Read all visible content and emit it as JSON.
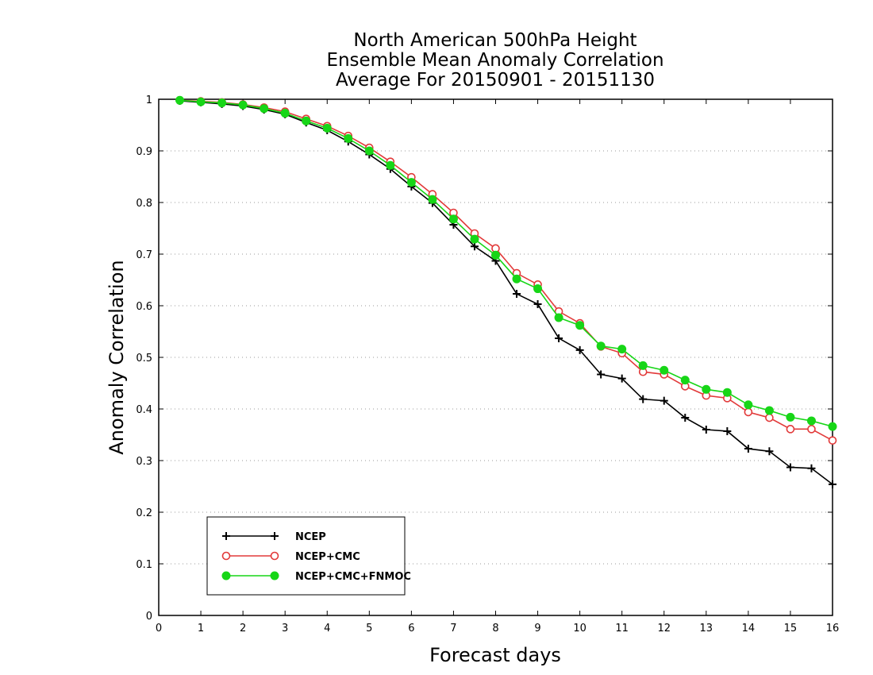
{
  "chart_data": {
    "type": "line",
    "title_lines": [
      "North American 500hPa Height",
      "Ensemble Mean Anomaly Correlation",
      "Average For 20150901 - 20151130"
    ],
    "xlabel": "Forecast days",
    "ylabel": "Anomaly Correlation",
    "xlim": [
      0,
      16
    ],
    "ylim": [
      0,
      1
    ],
    "x_ticks": [
      "0",
      "1",
      "2",
      "3",
      "4",
      "5",
      "6",
      "7",
      "8",
      "9",
      "10",
      "11",
      "12",
      "13",
      "14",
      "15",
      "16"
    ],
    "y_ticks": [
      "0",
      "0.1",
      "0.2",
      "0.3",
      "0.4",
      "0.5",
      "0.6",
      "0.7",
      "0.8",
      "0.9",
      "1"
    ],
    "grid": "horizontal dotted",
    "legend_position": "bottom-left",
    "x": [
      0.5,
      1,
      1.5,
      2,
      2.5,
      3,
      3.5,
      4,
      4.5,
      5,
      5.5,
      6,
      6.5,
      7,
      7.5,
      8,
      8.5,
      9,
      9.5,
      10,
      10.5,
      11,
      11.5,
      12,
      12.5,
      13,
      13.5,
      14,
      14.5,
      15,
      15.5,
      16
    ],
    "series": [
      {
        "name": "NCEP",
        "color": "#000000",
        "marker": "plus",
        "values": [
          0.997,
          0.994,
          0.991,
          0.987,
          0.98,
          0.971,
          0.955,
          0.94,
          0.918,
          0.893,
          0.865,
          0.831,
          0.799,
          0.757,
          0.715,
          0.687,
          0.623,
          0.603,
          0.537,
          0.514,
          0.467,
          0.459,
          0.419,
          0.416,
          0.383,
          0.36,
          0.357,
          0.323,
          0.318,
          0.287,
          0.285,
          0.254
        ]
      },
      {
        "name": "NCEP+CMC",
        "color": "#e23a3a",
        "marker": "open-circle",
        "values": [
          0.998,
          0.996,
          0.994,
          0.99,
          0.984,
          0.976,
          0.962,
          0.948,
          0.929,
          0.906,
          0.879,
          0.849,
          0.816,
          0.78,
          0.74,
          0.711,
          0.663,
          0.641,
          0.589,
          0.566,
          0.521,
          0.508,
          0.472,
          0.467,
          0.444,
          0.426,
          0.421,
          0.394,
          0.383,
          0.361,
          0.361,
          0.339
        ]
      },
      {
        "name": "NCEP+CMC+FNMOC",
        "color": "#17d617",
        "marker": "filled-circle",
        "values": [
          0.998,
          0.995,
          0.993,
          0.989,
          0.982,
          0.973,
          0.958,
          0.944,
          0.924,
          0.9,
          0.872,
          0.839,
          0.806,
          0.768,
          0.729,
          0.698,
          0.652,
          0.633,
          0.577,
          0.562,
          0.522,
          0.516,
          0.484,
          0.475,
          0.456,
          0.438,
          0.432,
          0.408,
          0.397,
          0.384,
          0.377,
          0.366
        ]
      }
    ]
  }
}
